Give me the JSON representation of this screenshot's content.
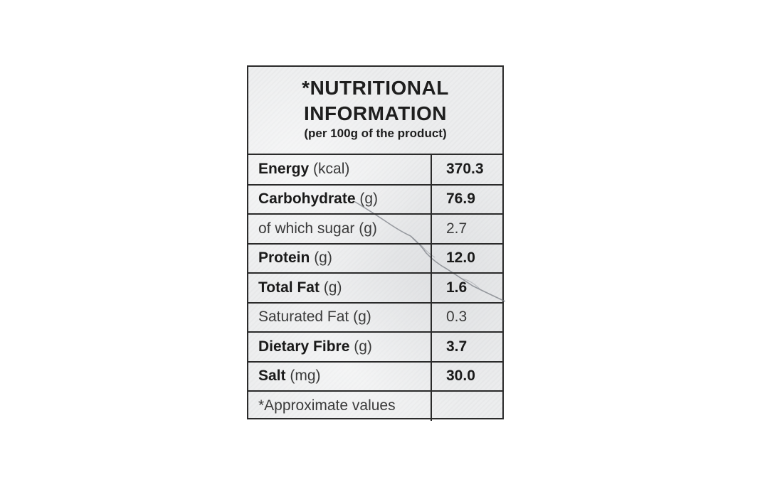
{
  "label": {
    "title_line1": "*NUTRITIONAL",
    "title_line2": "INFORMATION",
    "subtitle": "(per 100g of the product)",
    "rows": [
      {
        "name": "Energy",
        "unit": "(kcal)",
        "value": "370.3",
        "bold": true
      },
      {
        "name": "Carbohydrate",
        "unit": "(g)",
        "value": "76.9",
        "bold": true
      },
      {
        "name": "of which sugar",
        "unit": "(g)",
        "value": "2.7",
        "bold": false
      },
      {
        "name": "Protein",
        "unit": "(g)",
        "value": "12.0",
        "bold": true
      },
      {
        "name": "Total Fat",
        "unit": "(g)",
        "value": "1.6",
        "bold": true
      },
      {
        "name": "Saturated Fat",
        "unit": "(g)",
        "value": "0.3",
        "bold": false
      },
      {
        "name": "Dietary Fibre",
        "unit": "(g)",
        "value": "3.7",
        "bold": true
      },
      {
        "name": "Salt",
        "unit": "(mg)",
        "value": "30.0",
        "bold": true
      }
    ],
    "footnote": "*Approximate values",
    "colors": {
      "border": "#2a2a2a",
      "background": "#ecedee",
      "text": "#1e1e1e"
    }
  }
}
